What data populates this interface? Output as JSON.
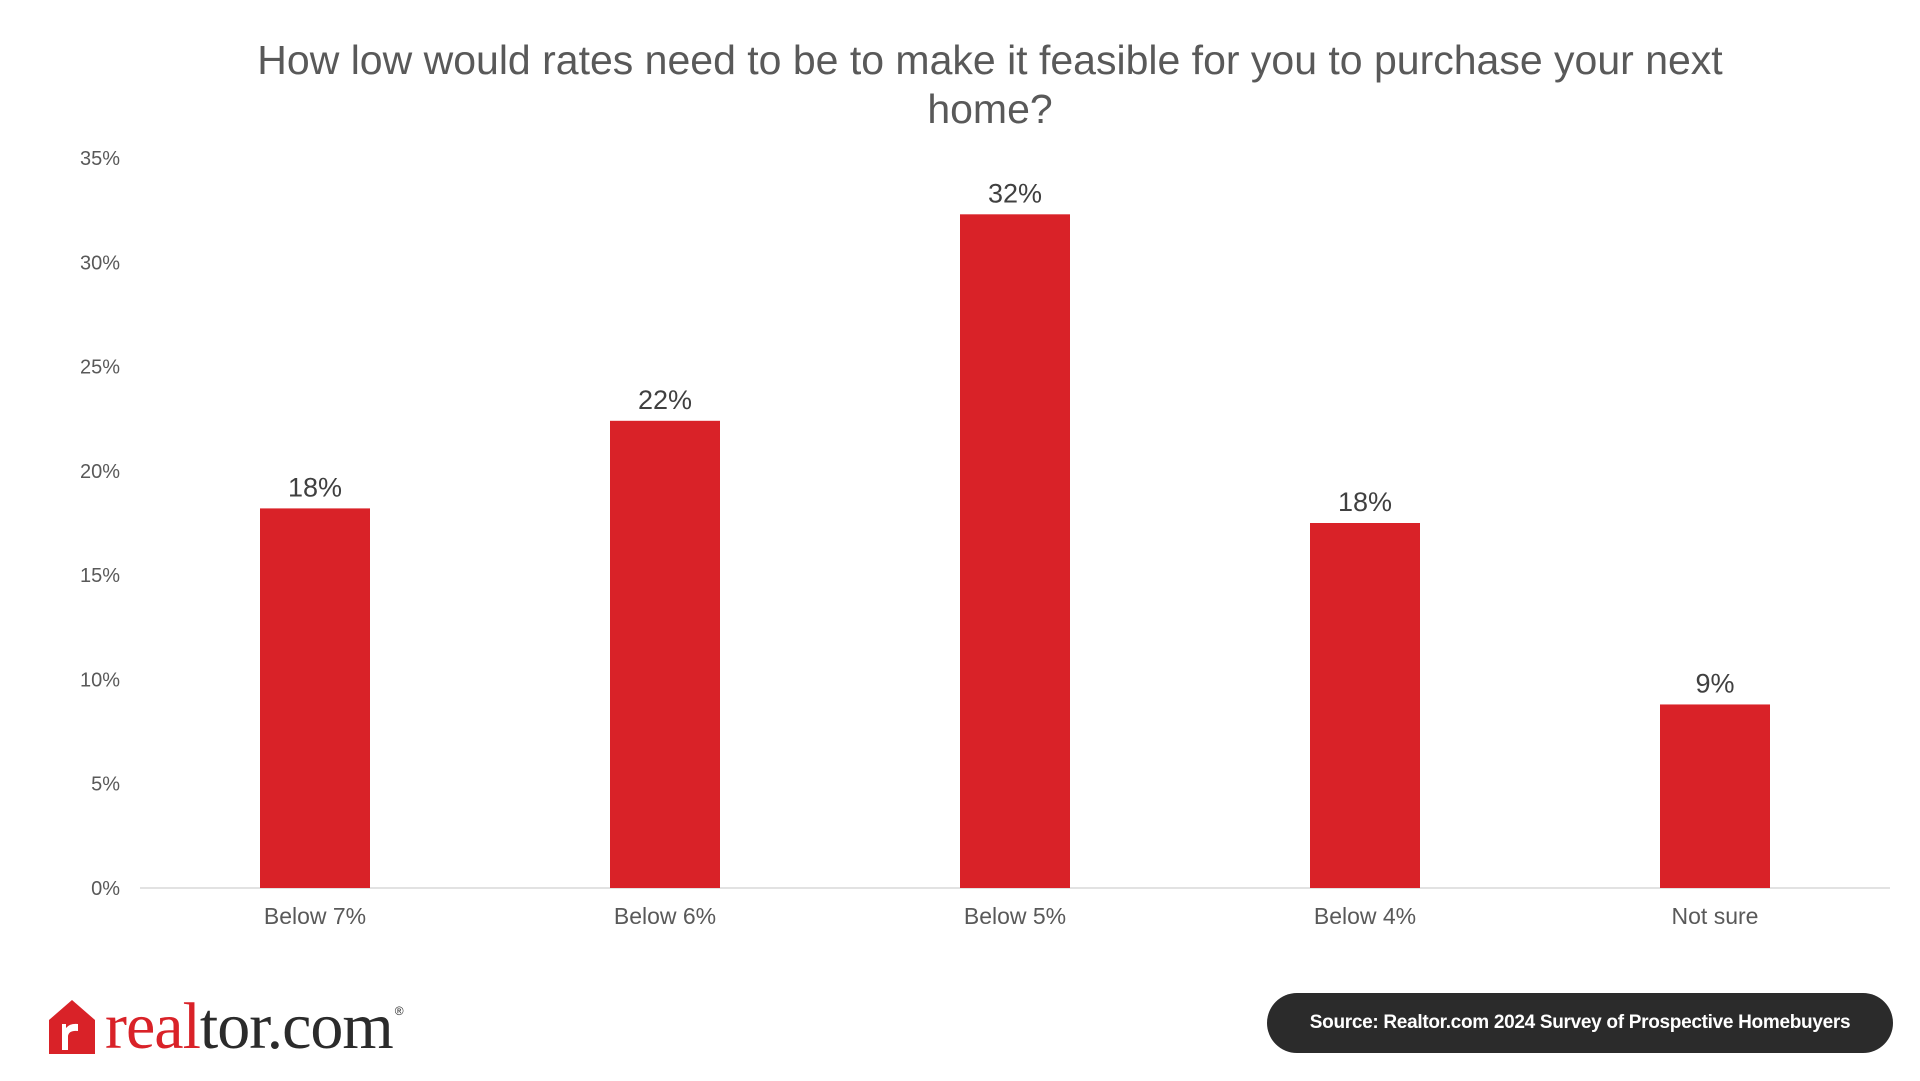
{
  "brand": {
    "logo_prefix": "real",
    "logo_suffix": "tor.com",
    "logo_reg": "®",
    "accent": "#d92228",
    "house_icon": "house-icon"
  },
  "source": "Source: Realtor.com 2024 Survey of Prospective Homebuyers",
  "chart_data": {
    "type": "bar",
    "title": "How low would rates need to be to make it feasible for you to purchase your next home?",
    "xlabel": "",
    "ylabel": "",
    "categories": [
      "Below 7%",
      "Below 6%",
      "Below 5%",
      "Below 4%",
      "Not sure"
    ],
    "values": [
      18.2,
      22.4,
      32.3,
      17.5,
      8.8
    ],
    "data_labels": [
      "18%",
      "22%",
      "32%",
      "18%",
      "9%"
    ],
    "ylim": [
      0,
      35
    ],
    "yticks": [
      0,
      5,
      10,
      15,
      20,
      25,
      30,
      35
    ],
    "ytick_labels": [
      "0%",
      "5%",
      "10%",
      "15%",
      "20%",
      "25%",
      "30%",
      "35%"
    ],
    "bar_color": "#d92228",
    "grid": false,
    "legend": "none"
  }
}
